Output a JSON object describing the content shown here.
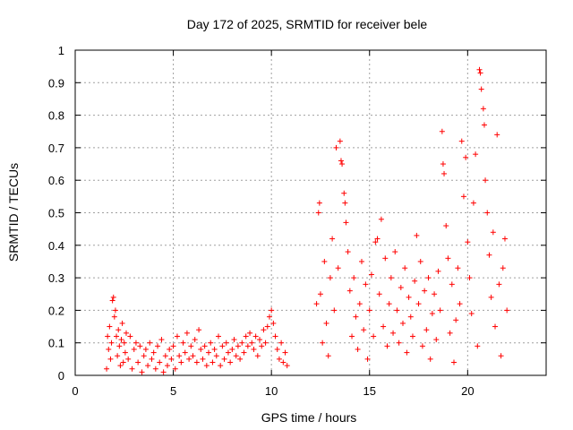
{
  "chart_data": {
    "type": "scatter",
    "title": "Day 172 of 2025, SRMTID for receiver bele",
    "xlabel": "GPS time / hours",
    "ylabel": "SRMTID / TECUs",
    "xlim": [
      0,
      24
    ],
    "ylim": [
      0,
      1
    ],
    "x_ticks": [
      0,
      5,
      10,
      15,
      20
    ],
    "x_tick_labels": [
      "0",
      "5",
      "10",
      "15",
      "20"
    ],
    "y_ticks": [
      0,
      0.1,
      0.2,
      0.3,
      0.4,
      0.5,
      0.6,
      0.7,
      0.8,
      0.9,
      1
    ],
    "y_tick_labels": [
      "0",
      "0.1",
      "0.2",
      "0.3",
      "0.4",
      "0.5",
      "0.6",
      "0.7",
      "0.8",
      "0.9",
      "1"
    ],
    "grid": true,
    "marker": "+",
    "series": [
      {
        "name": "SRMTID",
        "color": "#ff0000",
        "points": [
          [
            1.6,
            0.02
          ],
          [
            1.65,
            0.12
          ],
          [
            1.7,
            0.08
          ],
          [
            1.75,
            0.15
          ],
          [
            1.8,
            0.05
          ],
          [
            1.85,
            0.1
          ],
          [
            1.9,
            0.23
          ],
          [
            1.95,
            0.24
          ],
          [
            2.0,
            0.18
          ],
          [
            2.05,
            0.2
          ],
          [
            2.1,
            0.12
          ],
          [
            2.15,
            0.06
          ],
          [
            2.2,
            0.14
          ],
          [
            2.25,
            0.09
          ],
          [
            2.3,
            0.03
          ],
          [
            2.35,
            0.11
          ],
          [
            2.4,
            0.16
          ],
          [
            2.45,
            0.04
          ],
          [
            2.5,
            0.1
          ],
          [
            2.55,
            0.07
          ],
          [
            2.6,
            0.13
          ],
          [
            2.7,
            0.05
          ],
          [
            2.8,
            0.12
          ],
          [
            2.9,
            0.02
          ],
          [
            3.0,
            0.08
          ],
          [
            3.1,
            0.1
          ],
          [
            3.2,
            0.04
          ],
          [
            3.3,
            0.09
          ],
          [
            3.4,
            0.01
          ],
          [
            3.5,
            0.06
          ],
          [
            3.6,
            0.08
          ],
          [
            3.7,
            0.03
          ],
          [
            3.8,
            0.1
          ],
          [
            3.9,
            0.05
          ],
          [
            4.0,
            0.07
          ],
          [
            4.1,
            0.02
          ],
          [
            4.2,
            0.09
          ],
          [
            4.3,
            0.04
          ],
          [
            4.4,
            0.11
          ],
          [
            4.5,
            0.01
          ],
          [
            4.6,
            0.06
          ],
          [
            4.7,
            0.03
          ],
          [
            4.8,
            0.08
          ],
          [
            4.9,
            0.05
          ],
          [
            5.0,
            0.09
          ],
          [
            5.1,
            0.02
          ],
          [
            5.2,
            0.12
          ],
          [
            5.3,
            0.06
          ],
          [
            5.4,
            0.04
          ],
          [
            5.5,
            0.1
          ],
          [
            5.6,
            0.07
          ],
          [
            5.7,
            0.13
          ],
          [
            5.8,
            0.05
          ],
          [
            5.9,
            0.09
          ],
          [
            6.0,
            0.06
          ],
          [
            6.1,
            0.11
          ],
          [
            6.2,
            0.04
          ],
          [
            6.3,
            0.14
          ],
          [
            6.4,
            0.08
          ],
          [
            6.5,
            0.05
          ],
          [
            6.6,
            0.09
          ],
          [
            6.7,
            0.03
          ],
          [
            6.8,
            0.07
          ],
          [
            6.9,
            0.1
          ],
          [
            7.0,
            0.04
          ],
          [
            7.1,
            0.08
          ],
          [
            7.2,
            0.06
          ],
          [
            7.3,
            0.12
          ],
          [
            7.4,
            0.03
          ],
          [
            7.5,
            0.09
          ],
          [
            7.6,
            0.05
          ],
          [
            7.7,
            0.1
          ],
          [
            7.8,
            0.07
          ],
          [
            7.9,
            0.04
          ],
          [
            8.0,
            0.08
          ],
          [
            8.1,
            0.11
          ],
          [
            8.2,
            0.06
          ],
          [
            8.3,
            0.09
          ],
          [
            8.4,
            0.05
          ],
          [
            8.5,
            0.1
          ],
          [
            8.6,
            0.07
          ],
          [
            8.7,
            0.12
          ],
          [
            8.8,
            0.09
          ],
          [
            8.9,
            0.13
          ],
          [
            9.0,
            0.1
          ],
          [
            9.1,
            0.08
          ],
          [
            9.2,
            0.12
          ],
          [
            9.3,
            0.06
          ],
          [
            9.4,
            0.11
          ],
          [
            9.5,
            0.09
          ],
          [
            9.6,
            0.14
          ],
          [
            9.7,
            0.1
          ],
          [
            9.8,
            0.15
          ],
          [
            9.9,
            0.18
          ],
          [
            10.0,
            0.2
          ],
          [
            10.1,
            0.16
          ],
          [
            10.2,
            0.12
          ],
          [
            10.3,
            0.08
          ],
          [
            10.4,
            0.05
          ],
          [
            10.5,
            0.1
          ],
          [
            10.6,
            0.04
          ],
          [
            10.7,
            0.07
          ],
          [
            10.8,
            0.03
          ],
          [
            12.3,
            0.22
          ],
          [
            12.4,
            0.5
          ],
          [
            12.45,
            0.53
          ],
          [
            12.5,
            0.25
          ],
          [
            12.6,
            0.1
          ],
          [
            12.7,
            0.35
          ],
          [
            12.8,
            0.16
          ],
          [
            12.9,
            0.06
          ],
          [
            13.0,
            0.3
          ],
          [
            13.1,
            0.42
          ],
          [
            13.2,
            0.2
          ],
          [
            13.3,
            0.7
          ],
          [
            13.4,
            0.33
          ],
          [
            13.5,
            0.72
          ],
          [
            13.55,
            0.66
          ],
          [
            13.6,
            0.65
          ],
          [
            13.7,
            0.56
          ],
          [
            13.75,
            0.53
          ],
          [
            13.8,
            0.47
          ],
          [
            13.9,
            0.38
          ],
          [
            14.0,
            0.26
          ],
          [
            14.1,
            0.12
          ],
          [
            14.2,
            0.3
          ],
          [
            14.3,
            0.18
          ],
          [
            14.4,
            0.08
          ],
          [
            14.5,
            0.22
          ],
          [
            14.6,
            0.35
          ],
          [
            14.7,
            0.14
          ],
          [
            14.8,
            0.28
          ],
          [
            14.9,
            0.05
          ],
          [
            15.0,
            0.2
          ],
          [
            15.1,
            0.31
          ],
          [
            15.2,
            0.12
          ],
          [
            15.3,
            0.41
          ],
          [
            15.4,
            0.42
          ],
          [
            15.5,
            0.25
          ],
          [
            15.6,
            0.48
          ],
          [
            15.7,
            0.15
          ],
          [
            15.8,
            0.36
          ],
          [
            15.9,
            0.09
          ],
          [
            16.0,
            0.22
          ],
          [
            16.1,
            0.3
          ],
          [
            16.2,
            0.13
          ],
          [
            16.3,
            0.38
          ],
          [
            16.4,
            0.2
          ],
          [
            16.5,
            0.1
          ],
          [
            16.6,
            0.27
          ],
          [
            16.7,
            0.16
          ],
          [
            16.8,
            0.33
          ],
          [
            16.9,
            0.07
          ],
          [
            17.0,
            0.24
          ],
          [
            17.1,
            0.18
          ],
          [
            17.2,
            0.12
          ],
          [
            17.3,
            0.29
          ],
          [
            17.4,
            0.43
          ],
          [
            17.5,
            0.22
          ],
          [
            17.6,
            0.35
          ],
          [
            17.7,
            0.09
          ],
          [
            17.8,
            0.26
          ],
          [
            17.9,
            0.14
          ],
          [
            18.0,
            0.3
          ],
          [
            18.1,
            0.05
          ],
          [
            18.2,
            0.19
          ],
          [
            18.3,
            0.25
          ],
          [
            18.4,
            0.11
          ],
          [
            18.5,
            0.32
          ],
          [
            18.6,
            0.2
          ],
          [
            18.7,
            0.75
          ],
          [
            18.75,
            0.65
          ],
          [
            18.8,
            0.62
          ],
          [
            18.9,
            0.46
          ],
          [
            19.0,
            0.36
          ],
          [
            19.1,
            0.13
          ],
          [
            19.2,
            0.28
          ],
          [
            19.3,
            0.04
          ],
          [
            19.4,
            0.17
          ],
          [
            19.5,
            0.33
          ],
          [
            19.6,
            0.22
          ],
          [
            19.7,
            0.72
          ],
          [
            19.8,
            0.55
          ],
          [
            19.9,
            0.67
          ],
          [
            20.0,
            0.41
          ],
          [
            20.1,
            0.3
          ],
          [
            20.2,
            0.19
          ],
          [
            20.3,
            0.53
          ],
          [
            20.4,
            0.68
          ],
          [
            20.5,
            0.09
          ],
          [
            20.6,
            0.94
          ],
          [
            20.65,
            0.93
          ],
          [
            20.7,
            0.88
          ],
          [
            20.8,
            0.82
          ],
          [
            20.85,
            0.77
          ],
          [
            20.9,
            0.6
          ],
          [
            21.0,
            0.5
          ],
          [
            21.1,
            0.37
          ],
          [
            21.2,
            0.24
          ],
          [
            21.3,
            0.44
          ],
          [
            21.4,
            0.15
          ],
          [
            21.5,
            0.74
          ],
          [
            21.6,
            0.28
          ],
          [
            21.7,
            0.06
          ],
          [
            21.8,
            0.33
          ],
          [
            21.9,
            0.42
          ],
          [
            22.0,
            0.2
          ]
        ]
      }
    ]
  }
}
